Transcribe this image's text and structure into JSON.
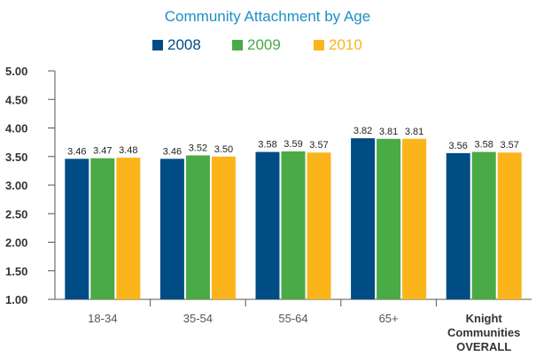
{
  "chart_data": {
    "type": "bar",
    "title": "Community Attachment by Age",
    "categories": [
      "18-34",
      "35-54",
      "55-64",
      "65+",
      "Knight Communities OVERALL"
    ],
    "category_lines": [
      [
        "18-34"
      ],
      [
        "35-54"
      ],
      [
        "55-64"
      ],
      [
        "65+"
      ],
      [
        "Knight",
        "Communities",
        "OVERALL"
      ]
    ],
    "series": [
      {
        "name": "2008",
        "color": "#004c85",
        "values": [
          3.46,
          3.46,
          3.58,
          3.82,
          3.56
        ]
      },
      {
        "name": "2009",
        "color": "#4aaa46",
        "values": [
          3.47,
          3.52,
          3.59,
          3.81,
          3.58
        ]
      },
      {
        "name": "2010",
        "color": "#fbb41a",
        "values": [
          3.48,
          3.5,
          3.57,
          3.81,
          3.57
        ]
      }
    ],
    "value_labels": [
      [
        "3.46",
        "3.46",
        "3.58",
        "3.82",
        "3.56"
      ],
      [
        "3.47",
        "3.52",
        "3.59",
        "3.81",
        "3.58"
      ],
      [
        "3.48",
        "3.50",
        "3.57",
        "3.81",
        "3.57"
      ]
    ],
    "ylim": [
      1.0,
      5.0
    ],
    "yticks": [
      1.0,
      1.5,
      2.0,
      2.5,
      3.0,
      3.5,
      4.0,
      4.5,
      5.0
    ],
    "ytick_labels": [
      "1.00",
      "1.50",
      "2.00",
      "2.50",
      "3.00",
      "3.50",
      "4.00",
      "4.50",
      "5.00"
    ],
    "xlabel": "",
    "ylabel": "",
    "grid": false,
    "legend_position": "top-center",
    "colors": {
      "title": "#1e8fc6",
      "axis": "#555555",
      "tick_label": "#333333"
    }
  }
}
